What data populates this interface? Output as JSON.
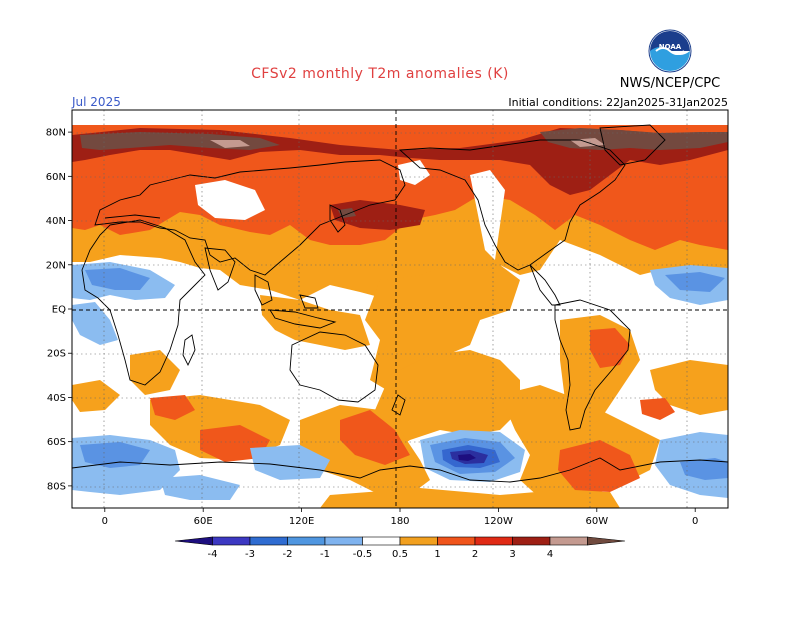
{
  "header": {
    "title": "CFSv2 monthly T2m anomalies (K)",
    "valid_month": "Jul 2025",
    "initial_conditions": "Initial conditions: 22Jan2025-31Jan2025",
    "agency": "NWS/NCEP/CPC",
    "logo_text": "NOAA"
  },
  "axes": {
    "lat_labels": [
      "80N",
      "60N",
      "40N",
      "20N",
      "EQ",
      "20S",
      "40S",
      "60S",
      "80S"
    ],
    "lat_values": [
      80,
      60,
      40,
      20,
      0,
      -20,
      -40,
      -60,
      -80
    ],
    "lon_labels": [
      "0",
      "60E",
      "120E",
      "180",
      "120W",
      "60W",
      "0"
    ],
    "lon_values": [
      0,
      60,
      120,
      180,
      240,
      300,
      360
    ],
    "lon_range": [
      -20,
      380
    ],
    "lat_range": [
      -90,
      90
    ]
  },
  "legend": {
    "tick_labels": [
      "-4",
      "-3",
      "-2",
      "-1",
      "-0.5",
      "0.5",
      "1",
      "2",
      "3",
      "4"
    ],
    "colors": [
      "#1d0e7f",
      "#3c38c2",
      "#2f6cd1",
      "#4f96e0",
      "#7fb3ef",
      "#ffffff",
      "#f2a01f",
      "#f0541b",
      "#e02a15",
      "#9e1f14",
      "#c49a90",
      "#704a3e"
    ]
  },
  "palette": {
    "white": "#ffffff",
    "orange": "#f6a11c",
    "red_orange": "#f0571b",
    "red": "#dc2a16",
    "dark_red": "#9e1f14",
    "tan": "#c49a90",
    "brown": "#73493f",
    "light_blue": "#8bbcf0",
    "mid_blue": "#5a93e3",
    "blue": "#3567cf",
    "dark_blue": "#2b2f9f",
    "deep_blue": "#1d0e7f"
  },
  "anomaly_regions": [
    {
      "level": "orange",
      "desc": "Pacific broad warm"
    },
    {
      "level": "red_orange",
      "desc": "Northern hemisphere warm belt"
    },
    {
      "level": "dark_red",
      "desc": "Arctic warm"
    },
    {
      "level": "brown",
      "desc": "Arctic strongest warm"
    },
    {
      "level": "mid_blue",
      "desc": "Southern ocean cold"
    },
    {
      "level": "dark_blue",
      "desc": "South Pacific cold core"
    }
  ]
}
